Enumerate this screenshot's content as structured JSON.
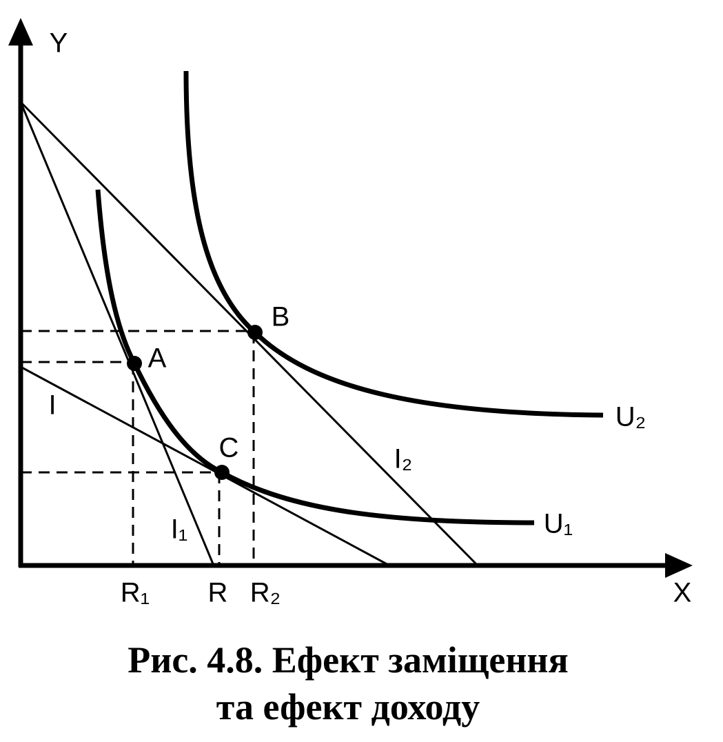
{
  "axes": {
    "y_label": "Y",
    "x_label": "X"
  },
  "points": [
    {
      "label": "A"
    },
    {
      "label": "B"
    },
    {
      "label": "C"
    }
  ],
  "lines": [
    {
      "label": "I"
    },
    {
      "label": "I₁"
    },
    {
      "label": "I₂"
    }
  ],
  "curves": [
    {
      "label": "U₁"
    },
    {
      "label": "U₂"
    }
  ],
  "x_marks": [
    {
      "label": "R₁"
    },
    {
      "label": "R"
    },
    {
      "label": "R₂"
    }
  ],
  "caption": {
    "line1": "Рис. 4.8. Ефект заміщення",
    "line2": "та ефект доходу"
  }
}
